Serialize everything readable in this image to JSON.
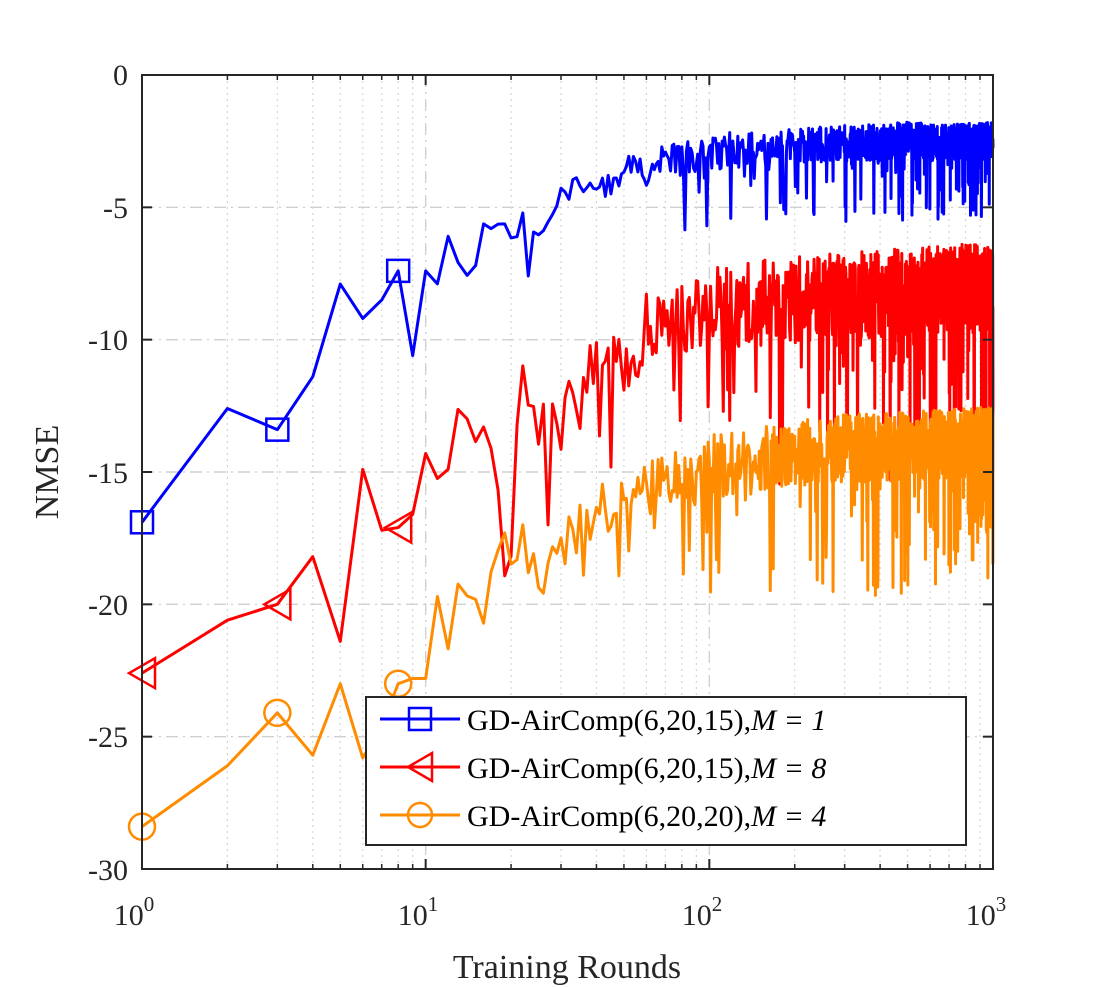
{
  "chart_data": {
    "type": "line",
    "xscale": "log",
    "xlim": [
      1,
      1000
    ],
    "ylim": [
      -30,
      0
    ],
    "xlabel": "Training Rounds",
    "ylabel": "NMSE",
    "xtick_labels": [
      {
        "base": "10",
        "exp": "0"
      },
      {
        "base": "10",
        "exp": "1"
      },
      {
        "base": "10",
        "exp": "2"
      },
      {
        "base": "10",
        "exp": "3"
      }
    ],
    "yticks": [
      0,
      -5,
      -10,
      -15,
      -20,
      -25,
      -30
    ],
    "ytick_labels": [
      "0",
      "-5",
      "-10",
      "-15",
      "-20",
      "-25",
      "-30"
    ],
    "grid": true,
    "legend_position": "bottom-right",
    "series": [
      {
        "name": "GD-AirComp(6,20,15)",
        "name_suffix": "M = 1",
        "color": "#0000ff",
        "marker": "square",
        "marker_x": [
          1,
          3,
          8
        ],
        "x": [
          1,
          2,
          3,
          4,
          5,
          6,
          7,
          8,
          9,
          10,
          11,
          12,
          13,
          14,
          16,
          18,
          20,
          22,
          25,
          28,
          30,
          35,
          40,
          45,
          50,
          60,
          70,
          80,
          90,
          100,
          120,
          150,
          200,
          300,
          400,
          500,
          700,
          1000
        ],
        "y": [
          -16.9,
          -12.6,
          -13.4,
          -11.4,
          -7.9,
          -9.2,
          -8.5,
          -7.4,
          -10.6,
          -7.4,
          -7.6,
          -6.2,
          -6.8,
          -7.7,
          -6.0,
          -5.5,
          -6.1,
          -5.4,
          -5.9,
          -5.2,
          -4.5,
          -3.9,
          -3.7,
          -4.3,
          -3.6,
          -3.5,
          -3.1,
          -3.2,
          -2.9,
          -2.8,
          -2.8,
          -2.7,
          -2.6,
          -2.5,
          -2.5,
          -2.4,
          -2.5,
          -2.4
        ],
        "noise_amplitude": 1.4
      },
      {
        "name": "GD-AirComp(6,20,15)",
        "name_suffix": "M = 8",
        "color": "#ff0000",
        "marker": "triangle-left",
        "marker_x": [
          1,
          3,
          8
        ],
        "x": [
          1,
          2,
          3,
          4,
          5,
          6,
          7,
          8,
          9,
          10,
          11,
          12,
          13,
          14,
          16,
          18,
          20,
          22,
          25,
          28,
          30,
          35,
          40,
          45,
          50,
          60,
          70,
          80,
          100,
          150,
          200,
          300,
          500,
          700,
          1000
        ],
        "y": [
          -22.6,
          -20.6,
          -20.0,
          -18.2,
          -21.4,
          -14.9,
          -17.2,
          -17.1,
          -16.6,
          -14.3,
          -14.9,
          -14.5,
          -12.4,
          -12.1,
          -14.1,
          -15.2,
          -17.1,
          -11.1,
          -13.9,
          -12.4,
          -13.6,
          -11.4,
          -11.3,
          -10.8,
          -10.6,
          -9.6,
          -9.2,
          -9.0,
          -8.8,
          -8.5,
          -8.3,
          -8.2,
          -8.0,
          -7.9,
          -7.8
        ],
        "noise_amplitude": 3.3
      },
      {
        "name": "GD-AirComp(6,20,20)",
        "name_suffix": "M = 4",
        "color": "#ff8c00",
        "marker": "circle",
        "marker_x": [
          1,
          3,
          8
        ],
        "x": [
          1,
          2,
          3,
          4,
          5,
          6,
          7,
          8,
          9,
          10,
          11,
          12,
          13,
          14,
          16,
          18,
          20,
          22,
          25,
          28,
          30,
          35,
          40,
          45,
          50,
          60,
          70,
          80,
          100,
          150,
          200,
          300,
          500,
          700,
          1000
        ],
        "y": [
          -28.4,
          -26.1,
          -24.1,
          -25.7,
          -23.0,
          -25.8,
          -24.6,
          -23.0,
          -22.8,
          -22.8,
          -19.7,
          -22.3,
          -19.3,
          -19.1,
          -19.9,
          -17.1,
          -18.5,
          -17.6,
          -19.3,
          -18.6,
          -17.7,
          -16.8,
          -16.4,
          -16.2,
          -16.0,
          -15.6,
          -15.3,
          -15.0,
          -14.7,
          -14.4,
          -14.1,
          -14.0,
          -13.9,
          -13.8,
          -13.7
        ],
        "noise_amplitude": 2.6
      }
    ]
  }
}
